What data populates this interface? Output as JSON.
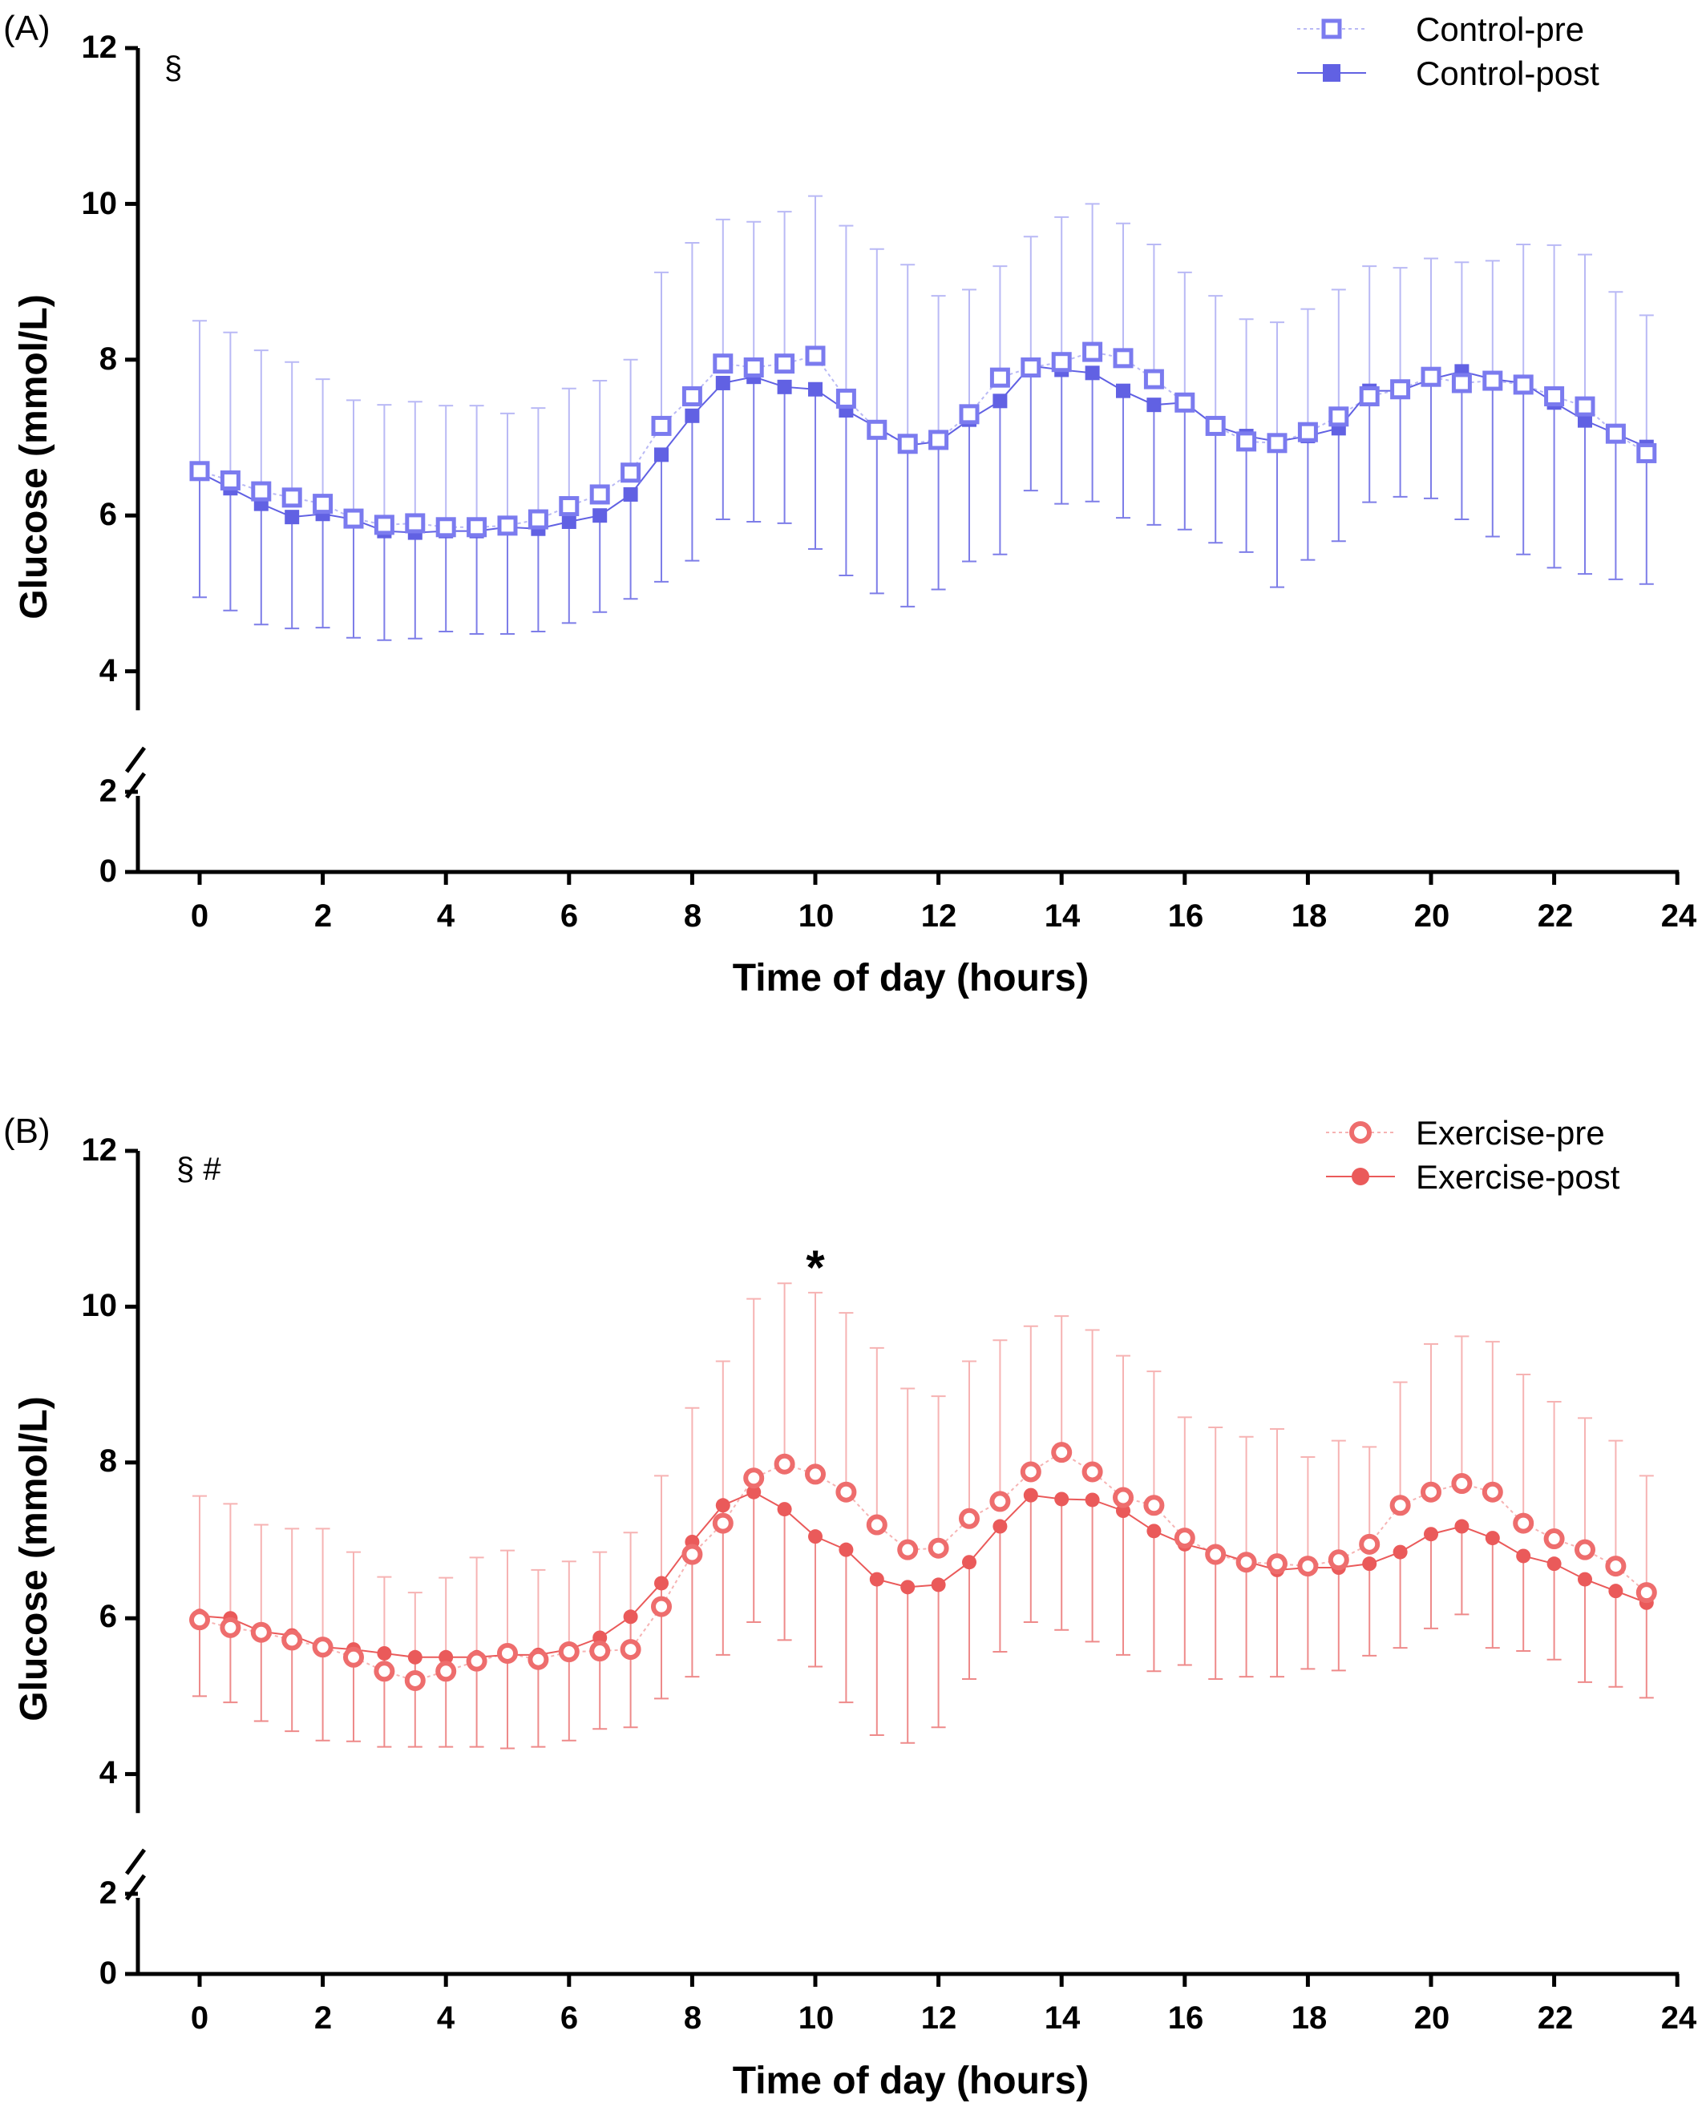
{
  "panels": [
    {
      "panel_label": "(A)",
      "annotation": "§",
      "star_annotation": "",
      "colors": {
        "pre": "#7b7bef",
        "post": "#6161e3",
        "err_pre": "#b9b9f5",
        "err_post": "#7d7de8"
      },
      "marker": "square"
    },
    {
      "panel_label": "(B)",
      "annotation": "§ #",
      "star_annotation": "*",
      "colors": {
        "pre": "#ee6d6d",
        "post": "#ea5a5a",
        "err_pre": "#f6b3b3",
        "err_post": "#ee8a8a"
      },
      "marker": "circle"
    }
  ],
  "chart_data": [
    {
      "type": "line",
      "panel": "(A)",
      "title": "",
      "xlabel": "Time of day (hours)",
      "ylabel": "Glucose (mmol/L)",
      "xlim": [
        -1,
        24
      ],
      "x_ticks": [
        0,
        2,
        4,
        6,
        8,
        10,
        12,
        14,
        16,
        18,
        20,
        22,
        24
      ],
      "y_ticks": [
        0,
        2,
        4,
        6,
        8,
        10,
        12
      ],
      "ylim": [
        0,
        12
      ],
      "y_axis_break": [
        2.3,
        3.5
      ],
      "grid": false,
      "legend_position": "top-right",
      "x": [
        0,
        0.5,
        1,
        1.5,
        2,
        2.5,
        3,
        3.5,
        4,
        4.5,
        5,
        5.5,
        6,
        6.5,
        7,
        7.5,
        8,
        8.5,
        9,
        9.5,
        10,
        10.5,
        11,
        11.5,
        12,
        12.5,
        13,
        13.5,
        14,
        14.5,
        15,
        15.5,
        16,
        16.5,
        17,
        17.5,
        18,
        18.5,
        19,
        19.5,
        20,
        20.5,
        21,
        21.5,
        22,
        22.5,
        23,
        23.5
      ],
      "series": [
        {
          "name": "Control-pre",
          "values": [
            6.57,
            6.45,
            6.31,
            6.23,
            6.15,
            5.96,
            5.88,
            5.9,
            5.85,
            5.85,
            5.87,
            5.95,
            6.12,
            6.27,
            6.55,
            7.15,
            7.53,
            7.95,
            7.9,
            7.95,
            8.05,
            7.5,
            7.1,
            6.92,
            6.97,
            7.3,
            7.77,
            7.9,
            7.97,
            8.1,
            8.02,
            7.75,
            7.45,
            7.15,
            6.95,
            6.93,
            7.07,
            7.27,
            7.53,
            7.62,
            7.78,
            7.7,
            7.73,
            7.68,
            7.53,
            7.4,
            7.05,
            6.8
          ],
          "error_upper": [
            8.5,
            8.35,
            8.12,
            7.97,
            7.75,
            7.48,
            7.42,
            7.46,
            7.41,
            7.41,
            7.31,
            7.38,
            7.63,
            7.73,
            8.0,
            9.12,
            9.5,
            9.8,
            9.77,
            9.9,
            10.1,
            9.72,
            9.42,
            9.22,
            8.82,
            8.9,
            9.2,
            9.58,
            9.83,
            10.0,
            9.75,
            9.48,
            9.12,
            8.82,
            8.52,
            8.48,
            8.65,
            8.9,
            9.2,
            9.18,
            9.3,
            9.25,
            9.27,
            9.48,
            9.47,
            9.35,
            8.87,
            8.57
          ]
        },
        {
          "name": "Control-post",
          "values": [
            6.55,
            6.35,
            6.15,
            5.98,
            6.02,
            5.95,
            5.8,
            5.78,
            5.8,
            5.8,
            5.85,
            5.83,
            5.92,
            6.0,
            6.27,
            6.78,
            7.28,
            7.7,
            7.78,
            7.65,
            7.62,
            7.35,
            7.13,
            6.9,
            6.95,
            7.23,
            7.47,
            7.92,
            7.87,
            7.83,
            7.6,
            7.42,
            7.45,
            7.15,
            7.02,
            6.95,
            7.02,
            7.12,
            7.6,
            7.6,
            7.75,
            7.85,
            7.75,
            7.7,
            7.45,
            7.22,
            7.05,
            6.88
          ],
          "error_lower": [
            4.95,
            4.78,
            4.6,
            4.55,
            4.56,
            4.43,
            4.4,
            4.42,
            4.51,
            4.48,
            4.48,
            4.51,
            4.62,
            4.76,
            4.93,
            5.15,
            5.42,
            5.95,
            5.92,
            5.9,
            5.57,
            5.23,
            5.0,
            4.83,
            5.05,
            5.41,
            5.5,
            6.32,
            6.15,
            6.18,
            5.97,
            5.88,
            5.82,
            5.65,
            5.53,
            5.08,
            5.43,
            5.67,
            6.17,
            6.24,
            6.22,
            5.95,
            5.73,
            5.5,
            5.33,
            5.25,
            5.18,
            5.12
          ]
        }
      ]
    },
    {
      "type": "line",
      "panel": "(B)",
      "title": "",
      "xlabel": "Time of day (hours)",
      "ylabel": "Glucose (mmol/L)",
      "xlim": [
        -1,
        24
      ],
      "x_ticks": [
        0,
        2,
        4,
        6,
        8,
        10,
        12,
        14,
        16,
        18,
        20,
        22,
        24
      ],
      "y_ticks": [
        0,
        2,
        4,
        6,
        8,
        10,
        12
      ],
      "ylim": [
        0,
        12
      ],
      "y_axis_break": [
        2.3,
        3.5
      ],
      "grid": false,
      "legend_position": "top-right",
      "significance_marker_x": 10,
      "x": [
        0,
        0.5,
        1,
        1.5,
        2,
        2.5,
        3,
        3.5,
        4,
        4.5,
        5,
        5.5,
        6,
        6.5,
        7,
        7.5,
        8,
        8.5,
        9,
        9.5,
        10,
        10.5,
        11,
        11.5,
        12,
        12.5,
        13,
        13.5,
        14,
        14.5,
        15,
        15.5,
        16,
        16.5,
        17,
        17.5,
        18,
        18.5,
        19,
        19.5,
        20,
        20.5,
        21,
        21.5,
        22,
        22.5,
        23,
        23.5
      ],
      "series": [
        {
          "name": "Exercise-pre",
          "values": [
            5.98,
            5.88,
            5.82,
            5.72,
            5.63,
            5.5,
            5.32,
            5.2,
            5.32,
            5.45,
            5.55,
            5.47,
            5.57,
            5.58,
            5.6,
            6.15,
            6.82,
            7.22,
            7.8,
            7.98,
            7.85,
            7.62,
            7.2,
            6.88,
            6.9,
            7.28,
            7.5,
            7.88,
            8.13,
            7.88,
            7.55,
            7.45,
            7.03,
            6.82,
            6.72,
            6.7,
            6.67,
            6.75,
            6.95,
            7.45,
            7.62,
            7.73,
            7.62,
            7.22,
            7.02,
            6.88,
            6.67,
            6.33
          ],
          "error_upper": [
            7.57,
            7.47,
            7.2,
            7.15,
            7.15,
            6.85,
            6.53,
            6.33,
            6.52,
            6.78,
            6.87,
            6.62,
            6.73,
            6.85,
            7.1,
            7.83,
            8.7,
            9.3,
            10.1,
            10.3,
            10.18,
            9.92,
            9.47,
            8.95,
            8.85,
            9.3,
            9.57,
            9.75,
            9.88,
            9.7,
            9.37,
            9.17,
            8.58,
            8.45,
            8.33,
            8.43,
            8.07,
            8.28,
            8.2,
            9.03,
            9.52,
            9.62,
            9.55,
            9.13,
            8.78,
            8.57,
            8.28,
            7.83
          ]
        },
        {
          "name": "Exercise-post",
          "values": [
            6.03,
            6.0,
            5.83,
            5.78,
            5.63,
            5.6,
            5.55,
            5.5,
            5.5,
            5.5,
            5.53,
            5.53,
            5.6,
            5.75,
            6.02,
            6.45,
            6.98,
            7.45,
            7.62,
            7.4,
            7.05,
            6.88,
            6.5,
            6.4,
            6.43,
            6.72,
            7.18,
            7.58,
            7.53,
            7.52,
            7.38,
            7.12,
            6.95,
            6.85,
            6.73,
            6.62,
            6.65,
            6.65,
            6.7,
            6.85,
            7.08,
            7.18,
            7.03,
            6.8,
            6.7,
            6.5,
            6.35,
            6.2
          ],
          "error_lower": [
            5.0,
            4.92,
            4.68,
            4.55,
            4.43,
            4.42,
            4.35,
            4.35,
            4.35,
            4.35,
            4.33,
            4.35,
            4.43,
            4.58,
            4.6,
            4.97,
            5.25,
            5.53,
            5.95,
            5.72,
            5.38,
            4.92,
            4.5,
            4.4,
            4.6,
            5.22,
            5.57,
            5.95,
            5.85,
            5.7,
            5.53,
            5.32,
            5.4,
            5.22,
            5.25,
            5.25,
            5.35,
            5.33,
            5.52,
            5.62,
            5.87,
            6.05,
            5.62,
            5.58,
            5.47,
            5.18,
            5.12,
            4.98
          ]
        }
      ]
    }
  ]
}
